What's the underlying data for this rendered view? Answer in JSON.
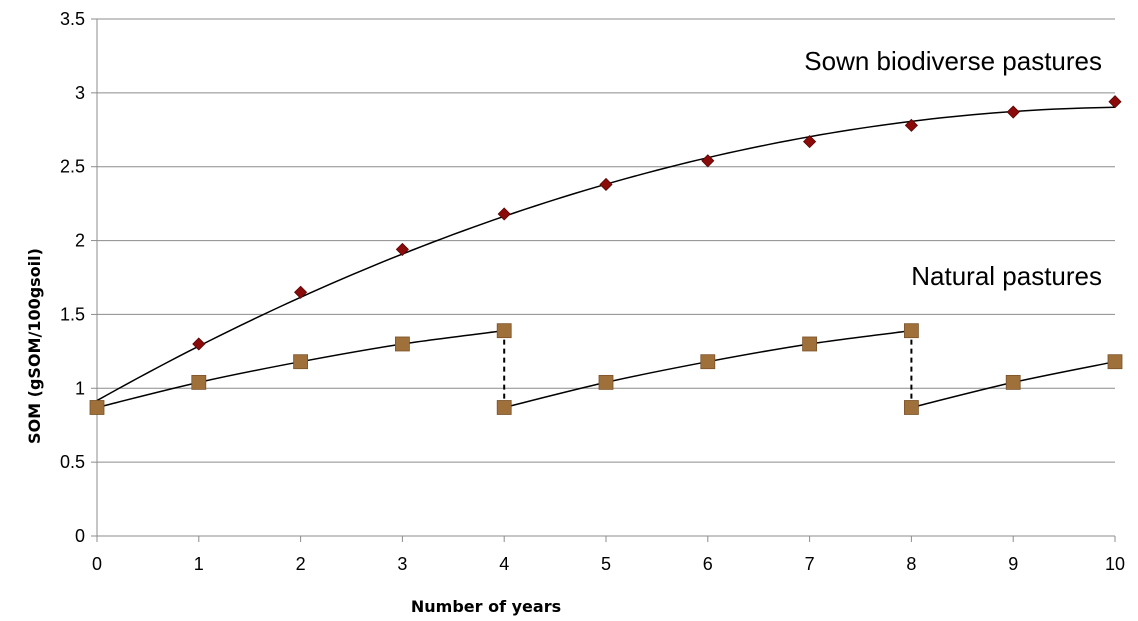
{
  "chart_data": {
    "type": "scatter",
    "xlabel": "Number of years",
    "ylabel": "SOM (gSOM/100gsoil)",
    "xlim": [
      0,
      10
    ],
    "ylim": [
      0,
      3.5
    ],
    "x_ticks": [
      "0",
      "1",
      "2",
      "3",
      "4",
      "5",
      "6",
      "7",
      "8",
      "9",
      "10"
    ],
    "y_ticks": [
      "0",
      "0.5",
      "1",
      "1.5",
      "2",
      "2.5",
      "3",
      "3.5"
    ],
    "grid": "horizontal",
    "annotations": [
      "Sown biodiverse pastures",
      "Natural pastures"
    ],
    "series": [
      {
        "marker": "diamond",
        "color": "#8B0A0A",
        "x": [
          0,
          1,
          2,
          3,
          4,
          5,
          6,
          7,
          8,
          9,
          10
        ],
        "y": [
          0.87,
          1.3,
          1.65,
          1.94,
          2.18,
          2.38,
          2.54,
          2.67,
          2.78,
          2.87,
          2.94
        ]
      },
      {
        "marker": "square",
        "color": "#A0703A",
        "x": [
          0,
          1,
          2,
          3,
          4,
          4,
          5,
          6,
          7,
          8,
          8,
          9,
          10
        ],
        "y": [
          0.87,
          1.04,
          1.18,
          1.3,
          1.39,
          0.87,
          1.04,
          1.18,
          1.3,
          1.39,
          0.87,
          1.04,
          1.18
        ]
      }
    ],
    "drops_at_x": [
      4,
      8
    ]
  }
}
